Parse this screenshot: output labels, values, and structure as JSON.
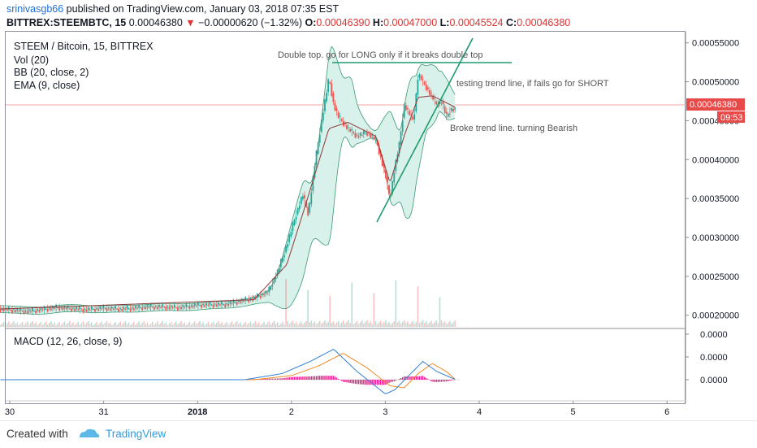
{
  "header": {
    "author": "srinivasgb66",
    "published": "published on TradingView.com, January 03, 2018 07:35 EST",
    "symbol": "BITTREX:STEEMBTC, 15",
    "last": "0.00046380",
    "change": "−0.00000620 (−1.32%)",
    "o_label": "O:",
    "o": "0.00046390",
    "h_label": "H:",
    "h": "0.00047000",
    "l_label": "L:",
    "l": "0.00045524",
    "c_label": "C:",
    "c": "0.00046380"
  },
  "legend": {
    "title": "STEEM / Bitcoin, 15, BITTREX",
    "vol": "Vol (20)",
    "bb": "BB (20, close, 2)",
    "ema": "EMA (9, close)",
    "macd": "MACD (12, 26, close, 9)"
  },
  "annotations": {
    "double_top": "Double top. go for LONG only if it breaks double top",
    "testing": "testing trend line, if fails go for SHORT",
    "broke": "Broke trend line. turning Bearish"
  },
  "price_label": {
    "value": "0.00046380",
    "countdown": "09:53"
  },
  "footer": {
    "created_with": "Created with",
    "brand": "TradingView"
  },
  "colors": {
    "up": "#26a69a",
    "down": "#ef5350",
    "bb": "#3a9a70",
    "bb_fill": "#d8f1ea",
    "ema": "#8b3a3a",
    "trend": "#1f9b6e",
    "macd": "#2f7fd8",
    "signal": "#f08a24",
    "hist": "#e91e8c",
    "price_tag": "#e84a4a"
  },
  "chart_data": [
    {
      "type": "line",
      "title": "STEEM / Bitcoin, 15, BITTREX",
      "x_ticks": [
        "30",
        "31",
        "2018",
        "2",
        "3",
        "4",
        "5",
        "6"
      ],
      "y_ticks": [
        "0.00055000",
        "0.00050000",
        "0.00045000",
        "0.00040000",
        "0.00035000",
        "0.00030000",
        "0.00025000",
        "0.00020000"
      ],
      "ylim": [
        0.000183,
        0.000557
      ],
      "current_price": 0.0004638,
      "series": [
        {
          "name": "STEEM / Bitcoin",
          "x": [
            29.9,
            30.2,
            30.5,
            30.8,
            31.0,
            31.2,
            31.5,
            31.8,
            32.0,
            32.3,
            32.6,
            32.75,
            32.85,
            32.95,
            33.05,
            33.12,
            33.18,
            33.25,
            33.32,
            33.4,
            33.45,
            33.5,
            33.6,
            33.7,
            33.8,
            33.9,
            34.0,
            34.05,
            34.1,
            34.15,
            34.2,
            34.3,
            34.35,
            34.4,
            34.45,
            34.5,
            34.55,
            34.6,
            34.65,
            34.7,
            34.75
          ],
          "close": [
            0.000208,
            0.000205,
            0.00021,
            0.000207,
            0.000209,
            0.000208,
            0.000211,
            0.00021,
            0.000213,
            0.000214,
            0.000222,
            0.00023,
            0.000255,
            0.00029,
            0.00033,
            0.000355,
            0.00033,
            0.000395,
            0.00045,
            0.000505,
            0.00047,
            0.000455,
            0.00044,
            0.00043,
            0.000435,
            0.000425,
            0.00038,
            0.00035,
            0.00039,
            0.00042,
            0.00047,
            0.00045,
            0.00051,
            0.0005,
            0.00049,
            0.00048,
            0.00047,
            0.000475,
            0.000455,
            0.000465,
            0.0004638
          ]
        },
        {
          "name": "EMA",
          "x": [
            29.9,
            32.6,
            32.95,
            33.12,
            33.4,
            33.6,
            33.9,
            34.05,
            34.2,
            34.35,
            34.5,
            34.75
          ],
          "values": [
            0.000208,
            0.00022,
            0.000265,
            0.00033,
            0.00044,
            0.000448,
            0.00043,
            0.00037,
            0.00043,
            0.00048,
            0.000482,
            0.000467
          ]
        }
      ]
    },
    {
      "type": "line",
      "title": "MACD (12, 26, close, 9)",
      "y_ticks": [
        "0.0000",
        "0.0000",
        "0.0000"
      ],
      "series": [
        {
          "name": "MACD",
          "x": [
            29.9,
            32.5,
            32.9,
            33.2,
            33.45,
            33.7,
            34.0,
            34.1,
            34.25,
            34.4,
            34.55,
            34.75
          ],
          "values": [
            0,
            0,
            0.3,
            0.9,
            1.5,
            0.4,
            -0.7,
            -0.5,
            0.2,
            0.9,
            0.4,
            0.0
          ]
        },
        {
          "name": "Signal",
          "x": [
            29.9,
            32.6,
            33.0,
            33.3,
            33.55,
            33.8,
            34.05,
            34.2,
            34.35,
            34.5,
            34.65,
            34.75
          ],
          "values": [
            0,
            0,
            0.2,
            0.7,
            1.3,
            0.6,
            -0.3,
            -0.4,
            0.3,
            0.8,
            0.4,
            0.0
          ]
        }
      ]
    }
  ]
}
